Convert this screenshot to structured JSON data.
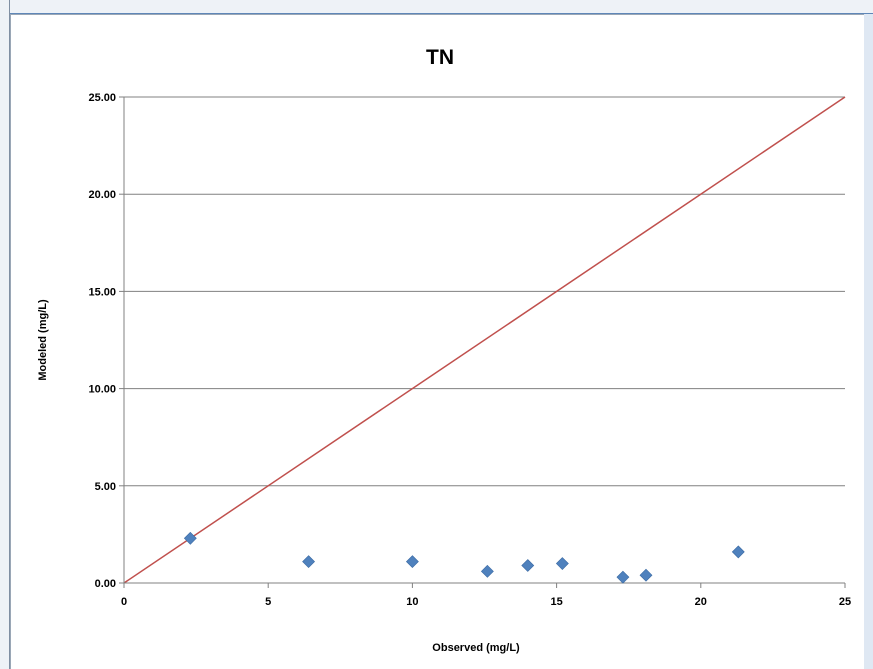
{
  "chart_data": {
    "type": "scatter",
    "title": "TN",
    "xlabel": "Observed (mg/L)",
    "ylabel": "Modeled (mg/L)",
    "xlim": [
      0,
      25
    ],
    "ylim": [
      0,
      25
    ],
    "xticks": [
      "0",
      "5",
      "10",
      "15",
      "20",
      "25"
    ],
    "yticks": [
      "0.00",
      "5.00",
      "10.00",
      "15.00",
      "20.00",
      "25.00"
    ],
    "grid": "horizontal",
    "legend": "none",
    "series": [
      {
        "marker": "diamond",
        "color": "#4f81bd",
        "points": [
          {
            "x": 2.3,
            "y": 2.3
          },
          {
            "x": 6.4,
            "y": 1.1
          },
          {
            "x": 10.0,
            "y": 1.1
          },
          {
            "x": 12.6,
            "y": 0.6
          },
          {
            "x": 14.0,
            "y": 0.9
          },
          {
            "x": 15.2,
            "y": 1.0
          },
          {
            "x": 17.3,
            "y": 0.3
          },
          {
            "x": 18.1,
            "y": 0.4
          },
          {
            "x": 21.3,
            "y": 1.6
          }
        ]
      }
    ],
    "reference_line": {
      "type": "1:1",
      "from": [
        0,
        0
      ],
      "to": [
        25,
        25
      ],
      "color": "#c0504d"
    }
  }
}
